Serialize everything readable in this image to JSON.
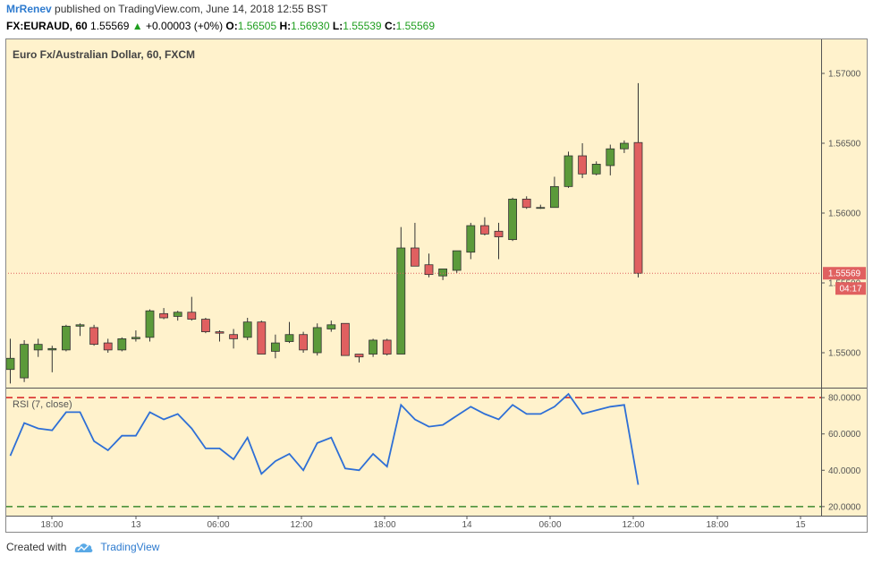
{
  "header": {
    "author": "MrRenev",
    "published": "published on TradingView.com, June 14, 2018 12:55 BST",
    "symbol": "FX:EURAUD, 60",
    "last": "1.55569",
    "change": "+0.00003 (+0%)",
    "o_label": "O:",
    "o_value": "1.56505",
    "h_label": "H:",
    "h_value": "1.56930",
    "l_label": "L:",
    "l_value": "1.55539",
    "c_label": "C:",
    "c_value": "1.55569"
  },
  "footer": {
    "created": "Created with",
    "brand": "TradingView"
  },
  "colors": {
    "up": "#5b9a3a",
    "down": "#e06060",
    "rsi": "#2e6fd6",
    "bg": "#fff2cc"
  },
  "chart_data": {
    "type": "candlestick",
    "title": "Euro Fx/Australian Dollar, 60, FXCM",
    "price_axis": {
      "range": [
        1.5475,
        1.5725
      ],
      "ticks": [
        "1.57000",
        "1.56500",
        "1.56000",
        "1.55500",
        "1.55000"
      ]
    },
    "last_price_label": "1.55569",
    "countdown_label": "04:17",
    "x_ticks": [
      "18:00",
      "13",
      "06:00",
      "12:00",
      "18:00",
      "14",
      "06:00",
      "12:00",
      "18:00",
      "15"
    ],
    "candles": [
      {
        "o": 1.5488,
        "h": 1.551,
        "l": 1.5478,
        "c": 1.5496
      },
      {
        "o": 1.5482,
        "h": 1.5509,
        "l": 1.5479,
        "c": 1.5506
      },
      {
        "o": 1.5502,
        "h": 1.551,
        "l": 1.5497,
        "c": 1.5506
      },
      {
        "o": 1.5502,
        "h": 1.5505,
        "l": 1.5486,
        "c": 1.5503
      },
      {
        "o": 1.5502,
        "h": 1.552,
        "l": 1.5501,
        "c": 1.5519
      },
      {
        "o": 1.5519,
        "h": 1.5521,
        "l": 1.5512,
        "c": 1.552
      },
      {
        "o": 1.5518,
        "h": 1.552,
        "l": 1.5505,
        "c": 1.5506
      },
      {
        "o": 1.5507,
        "h": 1.551,
        "l": 1.55,
        "c": 1.5502
      },
      {
        "o": 1.5502,
        "h": 1.5511,
        "l": 1.5501,
        "c": 1.551
      },
      {
        "o": 1.551,
        "h": 1.5516,
        "l": 1.5508,
        "c": 1.5511
      },
      {
        "o": 1.5511,
        "h": 1.5531,
        "l": 1.5508,
        "c": 1.553
      },
      {
        "o": 1.5528,
        "h": 1.5532,
        "l": 1.5524,
        "c": 1.5525
      },
      {
        "o": 1.5526,
        "h": 1.553,
        "l": 1.5523,
        "c": 1.5529
      },
      {
        "o": 1.5529,
        "h": 1.554,
        "l": 1.5523,
        "c": 1.5524
      },
      {
        "o": 1.5524,
        "h": 1.5525,
        "l": 1.5514,
        "c": 1.5515
      },
      {
        "o": 1.5515,
        "h": 1.5516,
        "l": 1.5508,
        "c": 1.5514
      },
      {
        "o": 1.5513,
        "h": 1.5517,
        "l": 1.5503,
        "c": 1.551
      },
      {
        "o": 1.5511,
        "h": 1.5525,
        "l": 1.5509,
        "c": 1.5522
      },
      {
        "o": 1.5522,
        "h": 1.5523,
        "l": 1.5499,
        "c": 1.5499
      },
      {
        "o": 1.5501,
        "h": 1.5513,
        "l": 1.5496,
        "c": 1.5507
      },
      {
        "o": 1.5508,
        "h": 1.5522,
        "l": 1.5507,
        "c": 1.5513
      },
      {
        "o": 1.5513,
        "h": 1.5515,
        "l": 1.55,
        "c": 1.5502
      },
      {
        "o": 1.55,
        "h": 1.5521,
        "l": 1.5498,
        "c": 1.5518
      },
      {
        "o": 1.5517,
        "h": 1.5523,
        "l": 1.5515,
        "c": 1.552
      },
      {
        "o": 1.5521,
        "h": 1.5521,
        "l": 1.5498,
        "c": 1.5498
      },
      {
        "o": 1.5499,
        "h": 1.5499,
        "l": 1.5493,
        "c": 1.5497
      },
      {
        "o": 1.5499,
        "h": 1.551,
        "l": 1.5497,
        "c": 1.5509
      },
      {
        "o": 1.5509,
        "h": 1.551,
        "l": 1.5498,
        "c": 1.5499
      },
      {
        "o": 1.5499,
        "h": 1.559,
        "l": 1.5499,
        "c": 1.5575
      },
      {
        "o": 1.5575,
        "h": 1.5593,
        "l": 1.5562,
        "c": 1.5562
      },
      {
        "o": 1.5563,
        "h": 1.5571,
        "l": 1.5554,
        "c": 1.5556
      },
      {
        "o": 1.5555,
        "h": 1.556,
        "l": 1.5552,
        "c": 1.556
      },
      {
        "o": 1.5559,
        "h": 1.5573,
        "l": 1.5557,
        "c": 1.5573
      },
      {
        "o": 1.5572,
        "h": 1.5593,
        "l": 1.5567,
        "c": 1.5591
      },
      {
        "o": 1.5591,
        "h": 1.5597,
        "l": 1.5584,
        "c": 1.5585
      },
      {
        "o": 1.5587,
        "h": 1.5593,
        "l": 1.5567,
        "c": 1.5583
      },
      {
        "o": 1.5581,
        "h": 1.5611,
        "l": 1.558,
        "c": 1.561
      },
      {
        "o": 1.561,
        "h": 1.5612,
        "l": 1.5603,
        "c": 1.5604
      },
      {
        "o": 1.5604,
        "h": 1.5606,
        "l": 1.5603,
        "c": 1.5604
      },
      {
        "o": 1.5604,
        "h": 1.5626,
        "l": 1.5604,
        "c": 1.5619
      },
      {
        "o": 1.5619,
        "h": 1.5644,
        "l": 1.5618,
        "c": 1.5641
      },
      {
        "o": 1.5641,
        "h": 1.565,
        "l": 1.5625,
        "c": 1.5628
      },
      {
        "o": 1.5628,
        "h": 1.5637,
        "l": 1.5627,
        "c": 1.5635
      },
      {
        "o": 1.5634,
        "h": 1.5649,
        "l": 1.5627,
        "c": 1.5646
      },
      {
        "o": 1.5646,
        "h": 1.5652,
        "l": 1.5643,
        "c": 1.565
      },
      {
        "o": 1.56505,
        "h": 1.5693,
        "l": 1.55539,
        "c": 1.55569
      }
    ],
    "rsi": {
      "title": "RSI (7, close)",
      "range": [
        15,
        85
      ],
      "ticks": [
        "80.0000",
        "60.0000",
        "40.0000",
        "20.0000"
      ],
      "upper": 80,
      "lower": 20,
      "values": [
        48,
        66,
        63,
        62,
        72,
        72,
        56,
        51,
        59,
        59,
        72,
        68,
        71,
        63,
        52,
        52,
        46,
        58,
        38,
        45,
        49,
        40,
        55,
        58,
        41,
        40,
        49,
        42,
        76,
        68,
        64,
        65,
        70,
        75,
        71,
        68,
        76,
        71,
        71,
        75,
        82,
        71,
        73,
        75,
        76,
        32
      ]
    }
  }
}
